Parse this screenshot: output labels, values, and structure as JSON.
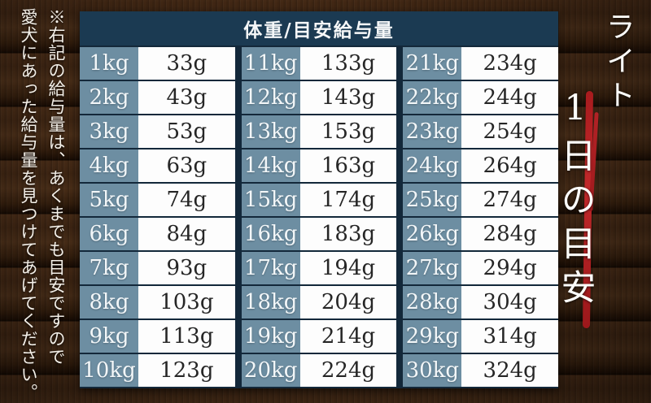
{
  "note": {
    "line1": "※右記の給与量は、あくまでも目安ですので",
    "line2": "愛犬にあった給与量を見つけてあげてください。"
  },
  "table": {
    "header": "体重/目安給与量",
    "groups": [
      {
        "rows": [
          [
            "1kg",
            "33g"
          ],
          [
            "2kg",
            "43g"
          ],
          [
            "3kg",
            "53g"
          ],
          [
            "4kg",
            "63g"
          ],
          [
            "5kg",
            "74g"
          ],
          [
            "6kg",
            "84g"
          ],
          [
            "7kg",
            "93g"
          ],
          [
            "8kg",
            "103g"
          ],
          [
            "9kg",
            "113g"
          ],
          [
            "10kg",
            "123g"
          ]
        ]
      },
      {
        "rows": [
          [
            "11kg",
            "133g"
          ],
          [
            "12kg",
            "143g"
          ],
          [
            "13kg",
            "153g"
          ],
          [
            "14kg",
            "163g"
          ],
          [
            "15kg",
            "174g"
          ],
          [
            "16kg",
            "183g"
          ],
          [
            "17kg",
            "194g"
          ],
          [
            "18kg",
            "204g"
          ],
          [
            "19kg",
            "214g"
          ],
          [
            "20kg",
            "224g"
          ]
        ]
      },
      {
        "rows": [
          [
            "21kg",
            "234g"
          ],
          [
            "22kg",
            "244g"
          ],
          [
            "23kg",
            "254g"
          ],
          [
            "24kg",
            "264g"
          ],
          [
            "25kg",
            "274g"
          ],
          [
            "26kg",
            "284g"
          ],
          [
            "27kg",
            "294g"
          ],
          [
            "28kg",
            "304g"
          ],
          [
            "29kg",
            "314g"
          ],
          [
            "30kg",
            "324g"
          ]
        ]
      }
    ]
  },
  "title": {
    "product": "ライト",
    "subtitle": "1日の目安"
  },
  "colors": {
    "accent_red": "#b2211f",
    "header_bg": "#1b3a52",
    "weight_cell_bg": "#6d8ea2",
    "amount_cell_bg": "#fdfdfd",
    "table_line": "#13283a",
    "text_light": "#f5f7f8",
    "text_dark": "#262626",
    "wood_base": "#3a2312"
  },
  "chart_data": {
    "type": "table",
    "title": "体重/目安給与量",
    "columns": [
      "体重",
      "目安給与量"
    ],
    "units": {
      "weight": "kg",
      "amount": "g"
    },
    "rows": [
      [
        1,
        33
      ],
      [
        2,
        43
      ],
      [
        3,
        53
      ],
      [
        4,
        63
      ],
      [
        5,
        74
      ],
      [
        6,
        84
      ],
      [
        7,
        93
      ],
      [
        8,
        103
      ],
      [
        9,
        113
      ],
      [
        10,
        123
      ],
      [
        11,
        133
      ],
      [
        12,
        143
      ],
      [
        13,
        153
      ],
      [
        14,
        163
      ],
      [
        15,
        174
      ],
      [
        16,
        183
      ],
      [
        17,
        194
      ],
      [
        18,
        204
      ],
      [
        19,
        214
      ],
      [
        20,
        224
      ],
      [
        21,
        234
      ],
      [
        22,
        244
      ],
      [
        23,
        254
      ],
      [
        24,
        264
      ],
      [
        25,
        274
      ],
      [
        26,
        284
      ],
      [
        27,
        294
      ],
      [
        28,
        304
      ],
      [
        29,
        314
      ],
      [
        30,
        324
      ]
    ],
    "annotations": [
      "※右記の給与量は、あくまでも目安ですので愛犬にあった給与量を見つけてあげてください。",
      "ライト 1日の目安"
    ]
  }
}
